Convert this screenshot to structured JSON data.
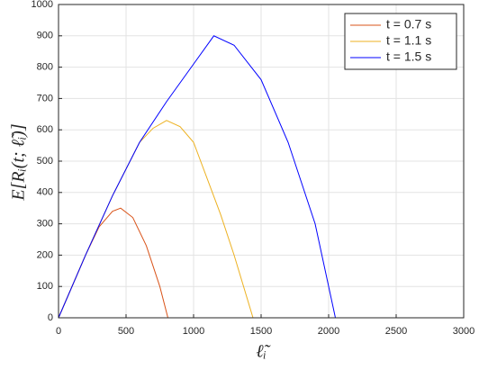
{
  "chart_data": {
    "type": "line",
    "x_label": "ℓ̃ᵢ",
    "y_label": "E[Rᵢ(t; ℓ̃ᵢ)]",
    "xlim": [
      0,
      3000
    ],
    "xticks": [
      0,
      500,
      1000,
      1500,
      2000,
      2500,
      3000
    ],
    "ylim": [
      0,
      1000
    ],
    "yticks": [
      0,
      100,
      200,
      300,
      400,
      500,
      600,
      700,
      800,
      900,
      1000
    ],
    "grid": true,
    "legend": "top-right",
    "series": [
      {
        "name": "t = 0.7 s",
        "color": "#d95319",
        "x": [
          0,
          200,
          300,
          400,
          460,
          550,
          650,
          750,
          810,
          3000
        ],
        "values": [
          0,
          200,
          290,
          340,
          350,
          320,
          230,
          100,
          0,
          0
        ]
      },
      {
        "name": "t = 1.1 s",
        "color": "#edb120",
        "x": [
          0,
          200,
          400,
          600,
          700,
          800,
          900,
          1000,
          1200,
          1300,
          1440,
          3000
        ],
        "values": [
          0,
          200,
          390,
          560,
          605,
          630,
          610,
          560,
          330,
          200,
          0,
          0
        ]
      },
      {
        "name": "t = 1.5 s",
        "color": "#0000ff",
        "x": [
          0,
          200,
          400,
          600,
          800,
          1000,
          1150,
          1300,
          1500,
          1700,
          1900,
          2050,
          3000
        ],
        "values": [
          0,
          200,
          390,
          560,
          690,
          810,
          900,
          870,
          760,
          560,
          300,
          0,
          0
        ]
      }
    ]
  }
}
